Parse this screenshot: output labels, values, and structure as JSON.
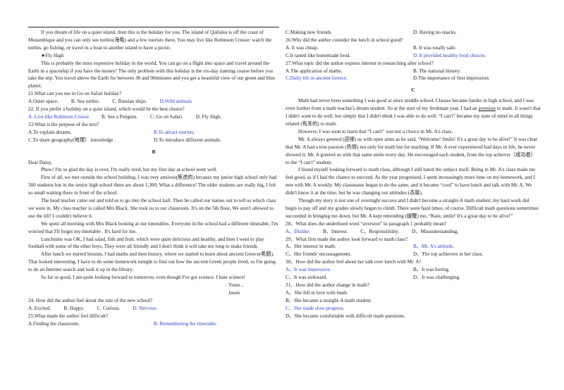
{
  "highlight_color": "#2b3fc4",
  "columns": [
    {
      "blocks": [
        {
          "indent": true,
          "text": "If you dream of life on a quiet island, then this is the holiday for you. The island of Quilalea is off the coast of Mozambique and you can only see turtles(海龟) and a few tourists there, You may live like Robinson Crusoe: watch the turtles, go fishing, or travel in a boat to another island to have a picnic."
        },
        {
          "indent": true,
          "text": "★Fly High"
        },
        {
          "indent": true,
          "text": "This is probably the most expensive holiday in the world, You can go on a flight into space and travel around the Earth in a spaceship if you have the money! The only problem with this holiday is the six-day training course before you take the trip. You travel above the Earth for between 30 and 90minutes and you get a beautiful view of our green and blue planet."
        },
        {
          "text": "21.What can you see in Go on Safari holiday?"
        },
        {
          "options": [
            {
              "text": "A.Outer space."
            },
            {
              "text": "B. Sea turtles."
            },
            {
              "text": "C. Russian ships."
            },
            {
              "text": "D.Wild animals",
              "highlight": true
            }
          ]
        },
        {
          "text": "22. If you prefer a holiday on a quiet island, which would be the best choice?"
        },
        {
          "options": [
            {
              "text": "A. Live like Robinson Crusoe",
              "highlight": true
            },
            {
              "text": "B. See a Penguin."
            },
            {
              "text": "C. Go on Safari."
            },
            {
              "text": "D. Fly High."
            }
          ]
        },
        {
          "text": "23.What is the purpose of the text?"
        },
        {
          "options": [
            {
              "text": "A.To explain dreams."
            },
            {
              "text": "B.To attract tourists.",
              "highlight": true
            }
          ]
        },
        {
          "options": [
            {
              "text": "C.To share geography(地理） knowledge ."
            },
            {
              "text": "D.To introduce different animals."
            }
          ]
        },
        {
          "heading": "B"
        },
        {
          "text": "Dear Daisy,"
        },
        {
          "indent": true,
          "text": "Phew! I'm so glad the day is over, I'm really tired, but my first day at school went well."
        },
        {
          "indent": true,
          "text": "First of all, we met outside the school building. I was very anxious(焦虑的) because my junior high school only had 300 students but in the senior high school there are about 1,300, What a difference! The older students are really big, I felt so small waiting there in front of the school."
        },
        {
          "indent": true,
          "text": "The head teacher came out and told us to go into the school hall. Then he called our names out to tell us which class we were in, My class teacher is called Mrs Black, She took us to our classroom. It's on the 5th floor, We aren't allowed to use the lift! I couldn't believe it."
        },
        {
          "indent": true,
          "text": "We spent all morning with Mrs Black looking at our timetables. Everyone in the school had a different timetable, I'm worried that I'll forget my timetable . It's hard for me."
        },
        {
          "indent": true,
          "text": "Lunchtime was OK, I had salad, fish and fruit, which were quite delicious and healthy, and then I went to play football with some of the other boys, They were all friendly and I don't think it will take me long to make friends."
        },
        {
          "indent": true,
          "text": "After lunch we started lessons, I had maths and then history, where we started to learn about ancient Greece(希腊), That looked interesting. I have to do some homework tonight to find out how the ancient Greek people lived, so I'm going to do an Internet search and look it up in the library."
        },
        {
          "indent": true,
          "text": "So far so good, I am quite looking forward to tomorrow, even though I've got science. I hate science!"
        },
        {
          "sign": "Yours ,"
        },
        {
          "sign": "Jason"
        },
        {
          "text": "24. How did the author feel about the size of the new school?"
        },
        {
          "options": [
            {
              "text": "A. Excited."
            },
            {
              "text": "B. Happy."
            },
            {
              "text": "C. Curious."
            },
            {
              "text": "D. Nervous.",
              "highlight": true
            }
          ]
        },
        {
          "text": "25.What made the author feel difficult?"
        },
        {
          "options": [
            {
              "text": "A.Finding the classroom."
            },
            {
              "text": "B. Remembering the timetable.",
              "highlight": true
            }
          ]
        }
      ]
    },
    {
      "blocks": [
        {
          "options": [
            {
              "text": "C.Making new friends."
            },
            {
              "text": "D. Having no snacks."
            }
          ]
        },
        {
          "text": "26.Why did the author consider the lunch in school good?"
        },
        {
          "options": [
            {
              "text": "A. It was cheap."
            },
            {
              "text": "B. It was totally safe."
            }
          ]
        },
        {
          "options": [
            {
              "text": "C.It tasted like homemade food."
            },
            {
              "text": "D. It provided healthy food choices.",
              "highlight": true
            }
          ]
        },
        {
          "text": "27.What topic did the author express interest in researching after school?"
        },
        {
          "options": [
            {
              "text": "A.The application of maths."
            },
            {
              "text": "B. The national history."
            }
          ]
        },
        {
          "options": [
            {
              "text": "C.Daily life in ancient Greece.",
              "highlight": true
            },
            {
              "text": "D.The importance of first impression."
            }
          ]
        },
        {
          "heading": "C"
        },
        {
          "indent": true,
          "parts": [
            "Math had never been something I was good at since middle school. Classes became harder in high school, and I was even further from a math teacher's dream student. So at the start of my freshman year, I had an ",
            "aversion",
            " to math. It wasn't that I didn't want to do well, but simply that I didn't think I was able to do well. “I can't” became my state of mind in all things related (有关的) to math."
          ],
          "underline": 1
        },
        {
          "indent": true,
          "text": "However, I was soon to learn that “I can't” was not a choice in Mr. A's class."
        },
        {
          "indent": true,
          "text": "Mr. A always greeted (迎接) us with open arms as he said, “Welcome! Smile! It's a great day to be alive!” It was clear that Mr. A had a true passion (热情) not only for math but for teaching. If Mr. A ever experienced bad days in life, he never showed it. Mr. A greeted us with that same smile every day. He encouraged each student, from the top achiever（成功者） to the “I can't” student."
        },
        {
          "indent": true,
          "text": "I found myself looking forward to math class, although I still hated the subject itself. Being in Mr. A's class made me feel good, as if I had the chance to succeed. As the year progressed, I spent increasingly more time on my homework, and I met with Mr. A weekly. My classmates began to do the same, and it became “cool” to have lunch and talk with Mr. A. We didn't know it at the time, but he was changing our attitudes (态度)."
        },
        {
          "indent": true,
          "text": "Though my story is not one of overnight success and I didn't become a straight-A math student, my hard work did begin to pay off and my grades slowly began to climb. There were hard times, of course. Difficult math questions sometimes succeeded in bringing me down, but Mr. A kept reminding (提醒) me, “Kate, smile! It's a great day to be alive!”"
        },
        {
          "text": "28、What does the underlined word “aversion” in paragraph 1 probably mean?"
        },
        {
          "options": [
            {
              "text": "A、Dislike.",
              "highlight": true
            },
            {
              "text": "B、Interest."
            },
            {
              "text": "C、Responsibility."
            },
            {
              "text": "D、Misunderstanding."
            }
          ]
        },
        {
          "text": "29、What first made the author look forward to math class?"
        },
        {
          "options": [
            {
              "text": "A、Her interest in math."
            },
            {
              "text": "B、Mr. A's attitude.",
              "highlight": true
            }
          ]
        },
        {
          "options": [
            {
              "text": "C、Her friends' encouragement."
            },
            {
              "text": "D、The top achievers in her class."
            }
          ]
        },
        {
          "text": "30、How did the author feel about her talk over lunch with Mr. A?"
        },
        {
          "options": [
            {
              "text": "A、It was impressive.",
              "highlight": true
            },
            {
              "text": "B、It was boring."
            }
          ]
        },
        {
          "options": [
            {
              "text": "C、It was awkward."
            },
            {
              "text": "D、It was challenging."
            }
          ]
        },
        {
          "text": "31、How did the author change in math?"
        },
        {
          "options": [
            {
              "text": "A、She fell in love with math."
            }
          ]
        },
        {
          "options": [
            {
              "text": "B、She became a straight-A math student."
            }
          ]
        },
        {
          "options": [
            {
              "text": "C、She made slow progress.",
              "highlight": true
            }
          ]
        },
        {
          "options": [
            {
              "text": "D、She became comfortable with difficult math questions."
            }
          ]
        }
      ]
    }
  ]
}
